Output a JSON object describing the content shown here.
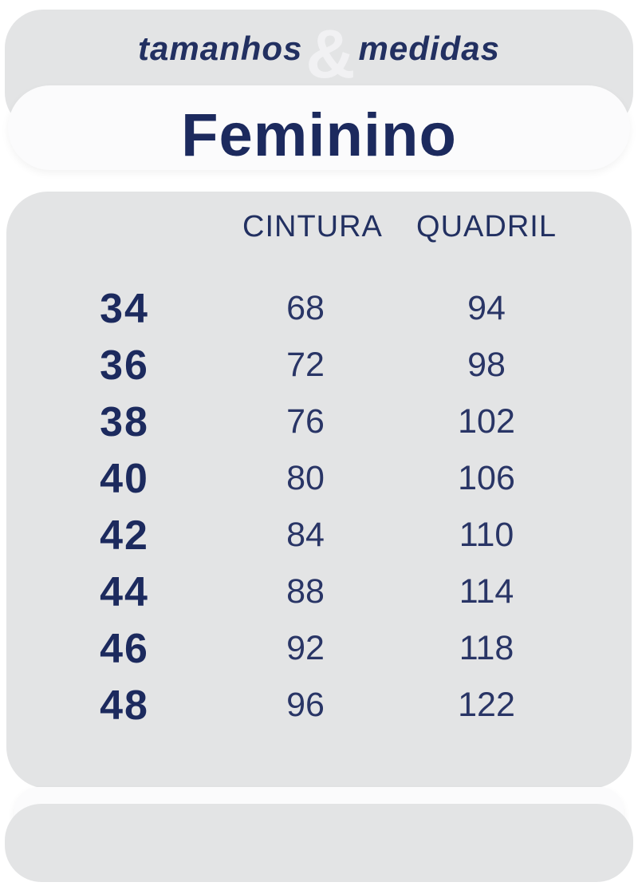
{
  "colors": {
    "page-bg": "#ffffff",
    "card-gray": "#e3e4e5",
    "card-white": "#fbfbfc",
    "navy-strong": "#1c2a5e",
    "navy-medium": "#223061",
    "navy-value": "#293566",
    "amp": "#f1f1f3"
  },
  "header": {
    "left_word": "tamanhos",
    "ampersand": "&",
    "right_word": "medidas"
  },
  "category": {
    "title": "Feminino"
  },
  "chart_data": {
    "type": "table",
    "title": "tamanhos & medidas",
    "subtitle": "Feminino",
    "columns": [
      "",
      "CINTURA",
      "QUADRIL"
    ],
    "rows": [
      [
        34,
        68,
        94
      ],
      [
        36,
        72,
        98
      ],
      [
        38,
        76,
        102
      ],
      [
        40,
        80,
        106
      ],
      [
        42,
        84,
        110
      ],
      [
        44,
        88,
        114
      ],
      [
        46,
        92,
        118
      ],
      [
        48,
        96,
        122
      ]
    ]
  }
}
